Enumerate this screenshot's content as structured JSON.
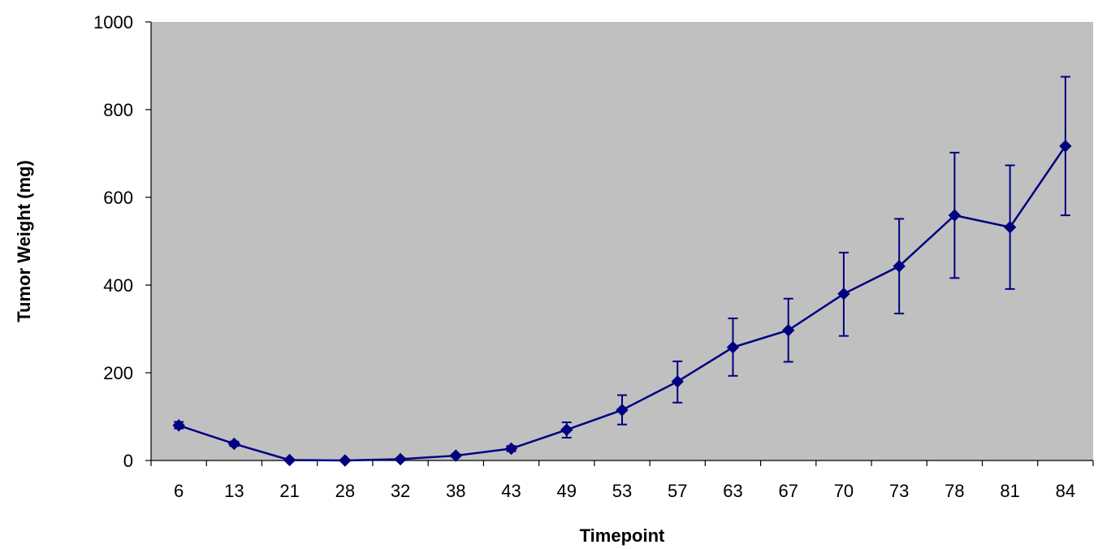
{
  "chart_data": {
    "type": "line",
    "title": "",
    "xlabel": "Timepoint",
    "ylabel": "Tumor Weight (mg)",
    "categories": [
      "6",
      "13",
      "21",
      "28",
      "32",
      "38",
      "43",
      "49",
      "53",
      "57",
      "63",
      "67",
      "70",
      "73",
      "78",
      "81",
      "84"
    ],
    "series": [
      {
        "values": [
          80,
          38,
          1,
          0,
          3,
          11,
          27,
          70,
          115,
          180,
          258,
          297,
          380,
          443,
          559,
          532,
          717
        ],
        "error_low": [
          73,
          33,
          0,
          0,
          1,
          8,
          21,
          52,
          82,
          132,
          193,
          225,
          284,
          335,
          416,
          391,
          559
        ],
        "error_high": [
          88,
          43,
          2,
          1,
          5,
          14,
          33,
          87,
          149,
          226,
          324,
          369,
          474,
          551,
          702,
          673,
          875
        ]
      }
    ],
    "ylim": [
      0,
      1000
    ],
    "yticks": [
      0,
      200,
      400,
      600,
      800,
      1000
    ],
    "grid": false,
    "legend": "none",
    "colors": {
      "series": "#000080",
      "plot_background": "#c0c0c0",
      "axis": "#000000"
    },
    "marker": "diamond-marker"
  }
}
